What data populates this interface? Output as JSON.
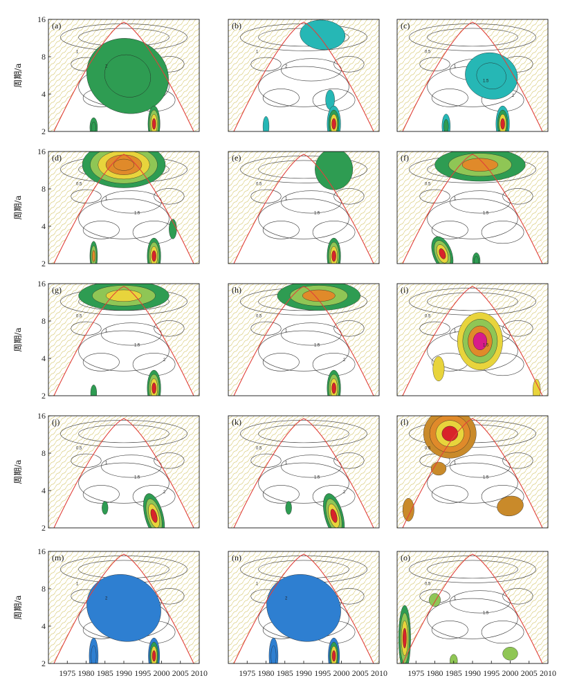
{
  "chart_data": {
    "type": "heatmap",
    "description_kind": "wavelet power spectra grid",
    "ylabel": "周期/a",
    "x_ticks": [
      "1975",
      "1980",
      "1985",
      "1990",
      "1995",
      "2000",
      "2005",
      "2010"
    ],
    "y_ticks": [
      "2",
      "4",
      "8",
      "16"
    ],
    "x_range": [
      1970,
      2010
    ],
    "y_range": [
      2,
      16
    ],
    "y_scale": "log",
    "colors": {
      "coi_line": "#e0403a",
      "hatch": "#d9cc7a",
      "green": "#2e9c52",
      "light_green": "#8fc655",
      "yellow": "#e8d43c",
      "orange": "#e08a2a",
      "red": "#d8232a",
      "magenta": "#d81b8a",
      "teal": "#26b7b5",
      "blue": "#2e7fd1",
      "ochre": "#c98a2a",
      "contour": "#333333"
    },
    "panels": [
      {
        "label": "(a)",
        "palette": "green",
        "blobs": [
          {
            "x": 1991,
            "y": 5.6,
            "w": 11,
            "h": 0.45,
            "rot": 22,
            "levels": 2,
            "tip": "green"
          },
          {
            "x": 1998,
            "y": 2.3,
            "w": 1.6,
            "h": 0.22,
            "rot": 0,
            "levels": 4,
            "tip": "red"
          },
          {
            "x": 1982,
            "y": 2.15,
            "w": 1.0,
            "h": 0.12,
            "rot": 0,
            "levels": 2,
            "tip": "green"
          }
        ],
        "contours": [
          "1",
          "2"
        ]
      },
      {
        "label": "(b)",
        "palette": "teal",
        "blobs": [
          {
            "x": 1995,
            "y": 12.0,
            "w": 6,
            "h": 0.18,
            "rot": 5,
            "levels": 1,
            "tip": "teal"
          },
          {
            "x": 1997,
            "y": 3.6,
            "w": 1.2,
            "h": 0.12,
            "rot": 0,
            "levels": 1,
            "tip": "teal"
          },
          {
            "x": 1998,
            "y": 2.3,
            "w": 1.8,
            "h": 0.22,
            "rot": 0,
            "levels": 4,
            "tip": "red"
          },
          {
            "x": 1980,
            "y": 2.2,
            "w": 0.8,
            "h": 0.12,
            "rot": 0,
            "levels": 1,
            "tip": "teal"
          }
        ],
        "contours": [
          "1",
          "2"
        ]
      },
      {
        "label": "(c)",
        "palette": "teal",
        "blobs": [
          {
            "x": 1995,
            "y": 5.6,
            "w": 7,
            "h": 0.28,
            "rot": 15,
            "levels": 2,
            "tip": "teal"
          },
          {
            "x": 1998,
            "y": 2.3,
            "w": 1.8,
            "h": 0.22,
            "rot": 0,
            "levels": 4,
            "tip": "red"
          },
          {
            "x": 1983,
            "y": 2.2,
            "w": 1.1,
            "h": 0.15,
            "rot": 0,
            "levels": 2,
            "tip": "green"
          }
        ],
        "contours": [
          "0.5",
          "1",
          "1.5",
          "2"
        ]
      },
      {
        "label": "(d)",
        "palette": "green",
        "blobs": [
          {
            "x": 1990,
            "y": 12.5,
            "w": 11,
            "h": 0.28,
            "rot": 0,
            "levels": 5,
            "tip": "orange"
          },
          {
            "x": 2003,
            "y": 3.8,
            "w": 1.0,
            "h": 0.12,
            "rot": 0,
            "levels": 1,
            "tip": "green"
          },
          {
            "x": 1998,
            "y": 2.3,
            "w": 1.8,
            "h": 0.22,
            "rot": 0,
            "levels": 4,
            "tip": "red"
          },
          {
            "x": 1982,
            "y": 2.3,
            "w": 1.0,
            "h": 0.18,
            "rot": 0,
            "levels": 3,
            "tip": "orange"
          }
        ],
        "contours": [
          "0.5",
          "1",
          "1.5"
        ]
      },
      {
        "label": "(e)",
        "palette": "green",
        "blobs": [
          {
            "x": 1998,
            "y": 11.5,
            "w": 5,
            "h": 0.25,
            "rot": 0,
            "levels": 1,
            "tip": "green"
          },
          {
            "x": 1998,
            "y": 2.3,
            "w": 1.8,
            "h": 0.22,
            "rot": 0,
            "levels": 4,
            "tip": "red"
          }
        ],
        "contours": [
          "0.5",
          "1",
          "1.5"
        ]
      },
      {
        "label": "(f)",
        "palette": "green",
        "blobs": [
          {
            "x": 1992,
            "y": 12.5,
            "w": 12,
            "h": 0.2,
            "rot": 0,
            "levels": 3,
            "tip": "orange"
          },
          {
            "x": 1982,
            "y": 2.4,
            "w": 2.5,
            "h": 0.22,
            "rot": -20,
            "levels": 4,
            "tip": "red"
          },
          {
            "x": 1991,
            "y": 2.1,
            "w": 1.0,
            "h": 0.1,
            "rot": 0,
            "levels": 2,
            "tip": "green"
          }
        ],
        "contours": [
          "0.5",
          "1",
          "1.5"
        ]
      },
      {
        "label": "(g)",
        "palette": "green",
        "blobs": [
          {
            "x": 1990,
            "y": 12.8,
            "w": 12,
            "h": 0.18,
            "rot": 0,
            "levels": 3,
            "tip": "yellow"
          },
          {
            "x": 1998,
            "y": 2.3,
            "w": 1.8,
            "h": 0.22,
            "rot": 0,
            "levels": 4,
            "tip": "red"
          },
          {
            "x": 1982,
            "y": 2.1,
            "w": 0.8,
            "h": 0.1,
            "rot": 0,
            "levels": 1,
            "tip": "green"
          }
        ],
        "contours": [
          "0.5",
          "1",
          "1.5",
          "2"
        ]
      },
      {
        "label": "(h)",
        "palette": "green",
        "blobs": [
          {
            "x": 1994,
            "y": 12.8,
            "w": 11,
            "h": 0.18,
            "rot": 0,
            "levels": 3,
            "tip": "orange"
          },
          {
            "x": 1998,
            "y": 2.3,
            "w": 1.8,
            "h": 0.22,
            "rot": 0,
            "levels": 4,
            "tip": "red"
          }
        ],
        "contours": [
          "0.5",
          "1",
          "1.5",
          "2"
        ]
      },
      {
        "label": "(i)",
        "palette": "yellow",
        "blobs": [
          {
            "x": 1992,
            "y": 5.5,
            "w": 6,
            "h": 0.35,
            "rot": 0,
            "levels": 4,
            "tip": "magenta"
          },
          {
            "x": 1981,
            "y": 3.3,
            "w": 1.5,
            "h": 0.15,
            "rot": 0,
            "levels": 1,
            "tip": "yellow"
          },
          {
            "x": 2007,
            "y": 2.2,
            "w": 1.0,
            "h": 0.14,
            "rot": 0,
            "levels": 1,
            "tip": "yellow"
          }
        ],
        "contours": [
          "0.5",
          "1",
          "1.5"
        ]
      },
      {
        "label": "(j)",
        "palette": "green",
        "blobs": [
          {
            "x": 1998,
            "y": 2.5,
            "w": 2.4,
            "h": 0.28,
            "rot": -15,
            "levels": 4,
            "tip": "red"
          },
          {
            "x": 1985,
            "y": 2.9,
            "w": 0.8,
            "h": 0.08,
            "rot": 0,
            "levels": 1,
            "tip": "green"
          }
        ],
        "contours": [
          "0.5",
          "1",
          "1.5",
          "2"
        ]
      },
      {
        "label": "(k)",
        "palette": "green",
        "blobs": [
          {
            "x": 1998,
            "y": 2.5,
            "w": 2.4,
            "h": 0.28,
            "rot": -15,
            "levels": 4,
            "tip": "red"
          },
          {
            "x": 1986,
            "y": 2.9,
            "w": 0.8,
            "h": 0.08,
            "rot": 0,
            "levels": 1,
            "tip": "green"
          }
        ],
        "contours": [
          "0.5",
          "1",
          "1.5",
          "2"
        ]
      },
      {
        "label": "(l)",
        "palette": "ochre",
        "blobs": [
          {
            "x": 1984,
            "y": 11.5,
            "w": 7,
            "h": 0.3,
            "rot": 0,
            "levels": 4,
            "tip": "red"
          },
          {
            "x": 1981,
            "y": 6.0,
            "w": 2,
            "h": 0.08,
            "rot": 0,
            "levels": 1,
            "tip": "ochre"
          },
          {
            "x": 1973,
            "y": 2.8,
            "w": 1.5,
            "h": 0.14,
            "rot": 0,
            "levels": 1,
            "tip": "ochre"
          },
          {
            "x": 2000,
            "y": 3.0,
            "w": 3.5,
            "h": 0.12,
            "rot": -10,
            "levels": 1,
            "tip": "ochre"
          }
        ],
        "contours": [
          "0.5",
          "1",
          "1.5"
        ]
      },
      {
        "label": "(m)",
        "palette": "blue",
        "blobs": [
          {
            "x": 1990,
            "y": 5.6,
            "w": 10,
            "h": 0.4,
            "rot": 22,
            "levels": 1,
            "tip": "blue"
          },
          {
            "x": 1982,
            "y": 2.3,
            "w": 1.2,
            "h": 0.22,
            "rot": 0,
            "levels": 2,
            "tip": "blue"
          },
          {
            "x": 1998,
            "y": 2.3,
            "w": 1.5,
            "h": 0.22,
            "rot": 0,
            "levels": 4,
            "tip": "red"
          }
        ],
        "contours": [
          "1",
          "2"
        ]
      },
      {
        "label": "(n)",
        "palette": "blue",
        "blobs": [
          {
            "x": 1990,
            "y": 5.6,
            "w": 10,
            "h": 0.4,
            "rot": 22,
            "levels": 1,
            "tip": "blue"
          },
          {
            "x": 1982,
            "y": 2.3,
            "w": 1.2,
            "h": 0.22,
            "rot": 0,
            "levels": 2,
            "tip": "blue"
          },
          {
            "x": 1998,
            "y": 2.3,
            "w": 1.5,
            "h": 0.22,
            "rot": 0,
            "levels": 4,
            "tip": "red"
          }
        ],
        "contours": [
          "1",
          "2"
        ]
      },
      {
        "label": "(o)",
        "palette": "green",
        "blobs": [
          {
            "x": 1972,
            "y": 3.2,
            "w": 1.6,
            "h": 0.4,
            "rot": 0,
            "levels": 4,
            "tip": "red"
          },
          {
            "x": 1980,
            "y": 6.5,
            "w": 1.5,
            "h": 0.08,
            "rot": 0,
            "levels": 1,
            "tip": "light_green"
          },
          {
            "x": 2000,
            "y": 2.4,
            "w": 2,
            "h": 0.08,
            "rot": 0,
            "levels": 1,
            "tip": "light_green"
          },
          {
            "x": 1985,
            "y": 2.1,
            "w": 1,
            "h": 0.08,
            "rot": 0,
            "levels": 1,
            "tip": "light_green"
          }
        ],
        "contours": [
          "0.5",
          "1",
          "1.5"
        ]
      }
    ]
  }
}
